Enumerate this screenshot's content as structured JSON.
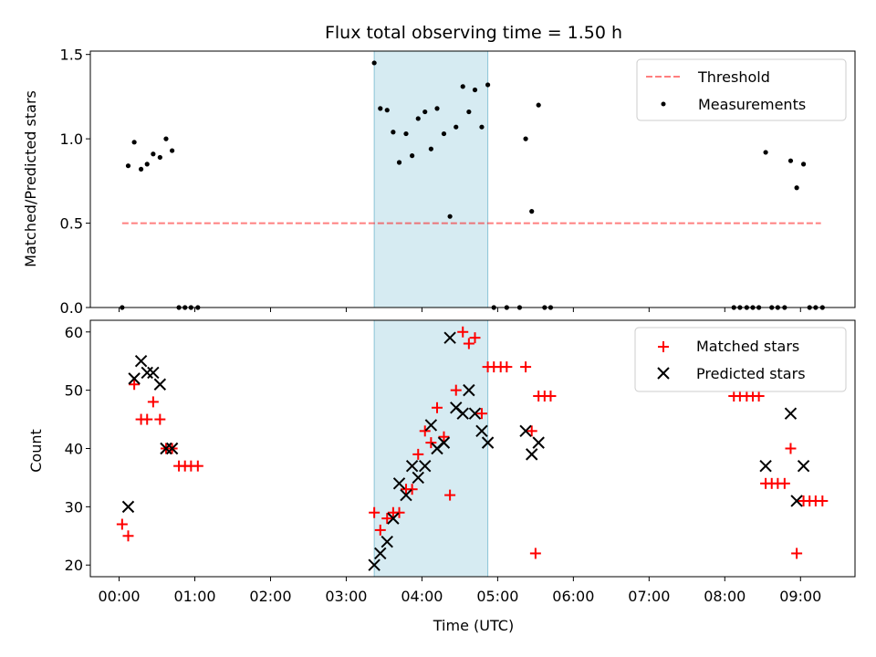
{
  "chart_data": {
    "title": "Flux total observing time = 1.50 h",
    "x_unit": "hours (UTC)",
    "xlabel": "Time (UTC)",
    "x_ticks": [
      {
        "v": 0,
        "label": "00:00"
      },
      {
        "v": 1,
        "label": "01:00"
      },
      {
        "v": 2,
        "label": "02:00"
      },
      {
        "v": 3,
        "label": "03:00"
      },
      {
        "v": 4,
        "label": "04:00"
      },
      {
        "v": 5,
        "label": "05:00"
      },
      {
        "v": 6,
        "label": "06:00"
      },
      {
        "v": 7,
        "label": "07:00"
      },
      {
        "v": 8,
        "label": "08:00"
      },
      {
        "v": 9,
        "label": "09:00"
      }
    ],
    "xlim": [
      -0.38,
      9.72
    ],
    "highlight_span": [
      3.37,
      4.87
    ],
    "highlight_color": "#add8e6",
    "panels": [
      {
        "type": "scatter",
        "ylabel": "Matched/Predicted stars",
        "ylim": [
          0,
          1.52
        ],
        "y_ticks": [
          {
            "v": 0,
            "label": "0.0"
          },
          {
            "v": 0.5,
            "label": "0.5"
          },
          {
            "v": 1.0,
            "label": "1.0"
          },
          {
            "v": 1.5,
            "label": "1.5"
          }
        ],
        "threshold": {
          "name": "Threshold",
          "value": 0.5,
          "x_range": [
            0.04,
            9.27
          ],
          "color": "#ff0000",
          "alpha": 0.5,
          "style": "dashed"
        },
        "series": [
          {
            "name": "Measurements",
            "marker": "dot",
            "color": "#000000",
            "points": [
              [
                0.04,
                0.0
              ],
              [
                0.12,
                0.84
              ],
              [
                0.2,
                0.98
              ],
              [
                0.29,
                0.82
              ],
              [
                0.37,
                0.85
              ],
              [
                0.45,
                0.91
              ],
              [
                0.54,
                0.89
              ],
              [
                0.62,
                1.0
              ],
              [
                0.7,
                0.93
              ],
              [
                0.79,
                0.0
              ],
              [
                0.87,
                0.0
              ],
              [
                0.95,
                0.0
              ],
              [
                1.04,
                0.0
              ],
              [
                3.37,
                1.45
              ],
              [
                3.45,
                1.18
              ],
              [
                3.54,
                1.17
              ],
              [
                3.62,
                1.04
              ],
              [
                3.7,
                0.86
              ],
              [
                3.79,
                1.03
              ],
              [
                3.87,
                0.9
              ],
              [
                3.95,
                1.12
              ],
              [
                4.04,
                1.16
              ],
              [
                4.12,
                0.94
              ],
              [
                4.2,
                1.18
              ],
              [
                4.29,
                1.03
              ],
              [
                4.37,
                0.54
              ],
              [
                4.45,
                1.07
              ],
              [
                4.54,
                1.31
              ],
              [
                4.62,
                1.16
              ],
              [
                4.7,
                1.29
              ],
              [
                4.79,
                1.07
              ],
              [
                4.87,
                1.32
              ],
              [
                4.95,
                0.0
              ],
              [
                5.12,
                0.0
              ],
              [
                5.29,
                0.0
              ],
              [
                5.37,
                1.0
              ],
              [
                5.45,
                0.57
              ],
              [
                5.54,
                1.2
              ],
              [
                5.62,
                0.0
              ],
              [
                5.7,
                0.0
              ],
              [
                8.12,
                0.0
              ],
              [
                8.2,
                0.0
              ],
              [
                8.29,
                0.0
              ],
              [
                8.37,
                0.0
              ],
              [
                8.45,
                0.0
              ],
              [
                8.54,
                0.92
              ],
              [
                8.62,
                0.0
              ],
              [
                8.7,
                0.0
              ],
              [
                8.79,
                0.0
              ],
              [
                8.87,
                0.87
              ],
              [
                8.95,
                0.71
              ],
              [
                9.04,
                0.85
              ],
              [
                9.12,
                0.0
              ],
              [
                9.2,
                0.0
              ],
              [
                9.29,
                0.0
              ]
            ]
          }
        ],
        "legend": {
          "placement": "upper right",
          "entries": [
            "Threshold",
            "Measurements"
          ]
        }
      },
      {
        "type": "scatter",
        "ylabel": "Count",
        "ylim": [
          18,
          62
        ],
        "y_ticks": [
          {
            "v": 20,
            "label": "20"
          },
          {
            "v": 30,
            "label": "30"
          },
          {
            "v": 40,
            "label": "40"
          },
          {
            "v": 50,
            "label": "50"
          },
          {
            "v": 60,
            "label": "60"
          }
        ],
        "series": [
          {
            "name": "Matched stars",
            "marker": "plus",
            "color": "#ff0000",
            "points": [
              [
                0.04,
                27
              ],
              [
                0.12,
                25
              ],
              [
                0.2,
                51
              ],
              [
                0.29,
                45
              ],
              [
                0.37,
                45
              ],
              [
                0.45,
                48
              ],
              [
                0.54,
                45
              ],
              [
                0.62,
                40
              ],
              [
                0.7,
                40
              ],
              [
                0.79,
                37
              ],
              [
                0.87,
                37
              ],
              [
                0.95,
                37
              ],
              [
                1.04,
                37
              ],
              [
                3.37,
                29
              ],
              [
                3.45,
                26
              ],
              [
                3.54,
                28
              ],
              [
                3.62,
                29
              ],
              [
                3.7,
                29
              ],
              [
                3.79,
                33
              ],
              [
                3.87,
                33
              ],
              [
                3.95,
                39
              ],
              [
                4.04,
                43
              ],
              [
                4.12,
                41
              ],
              [
                4.2,
                47
              ],
              [
                4.29,
                42
              ],
              [
                4.37,
                32
              ],
              [
                4.45,
                50
              ],
              [
                4.54,
                60
              ],
              [
                4.62,
                58
              ],
              [
                4.7,
                59
              ],
              [
                4.79,
                46
              ],
              [
                4.87,
                54
              ],
              [
                4.95,
                54
              ],
              [
                5.04,
                54
              ],
              [
                5.12,
                54
              ],
              [
                5.37,
                54
              ],
              [
                5.45,
                43
              ],
              [
                5.5,
                22
              ],
              [
                5.54,
                49
              ],
              [
                5.62,
                49
              ],
              [
                5.7,
                49
              ],
              [
                8.12,
                49
              ],
              [
                8.2,
                49
              ],
              [
                8.29,
                49
              ],
              [
                8.37,
                49
              ],
              [
                8.45,
                49
              ],
              [
                8.54,
                34
              ],
              [
                8.62,
                34
              ],
              [
                8.7,
                34
              ],
              [
                8.79,
                34
              ],
              [
                8.87,
                40
              ],
              [
                8.95,
                22
              ],
              [
                9.04,
                31
              ],
              [
                9.12,
                31
              ],
              [
                9.2,
                31
              ],
              [
                9.29,
                31
              ]
            ]
          },
          {
            "name": "Predicted stars",
            "marker": "x",
            "color": "#000000",
            "points": [
              [
                0.12,
                30
              ],
              [
                0.2,
                52
              ],
              [
                0.29,
                55
              ],
              [
                0.37,
                53
              ],
              [
                0.45,
                53
              ],
              [
                0.54,
                51
              ],
              [
                0.62,
                40
              ],
              [
                0.7,
                40
              ],
              [
                3.37,
                20
              ],
              [
                3.45,
                22
              ],
              [
                3.54,
                24
              ],
              [
                3.62,
                28
              ],
              [
                3.7,
                34
              ],
              [
                3.79,
                32
              ],
              [
                3.87,
                37
              ],
              [
                3.95,
                35
              ],
              [
                4.04,
                37
              ],
              [
                4.12,
                44
              ],
              [
                4.2,
                40
              ],
              [
                4.29,
                41
              ],
              [
                4.37,
                59
              ],
              [
                4.45,
                47
              ],
              [
                4.54,
                46
              ],
              [
                4.62,
                50
              ],
              [
                4.7,
                46
              ],
              [
                4.79,
                43
              ],
              [
                4.87,
                41
              ],
              [
                5.37,
                43
              ],
              [
                5.45,
                39
              ],
              [
                5.54,
                41
              ],
              [
                8.54,
                37
              ],
              [
                8.87,
                46
              ],
              [
                8.95,
                31
              ],
              [
                9.04,
                37
              ]
            ]
          }
        ],
        "legend": {
          "placement": "upper right",
          "entries": [
            "Matched stars",
            "Predicted stars"
          ]
        }
      }
    ]
  }
}
